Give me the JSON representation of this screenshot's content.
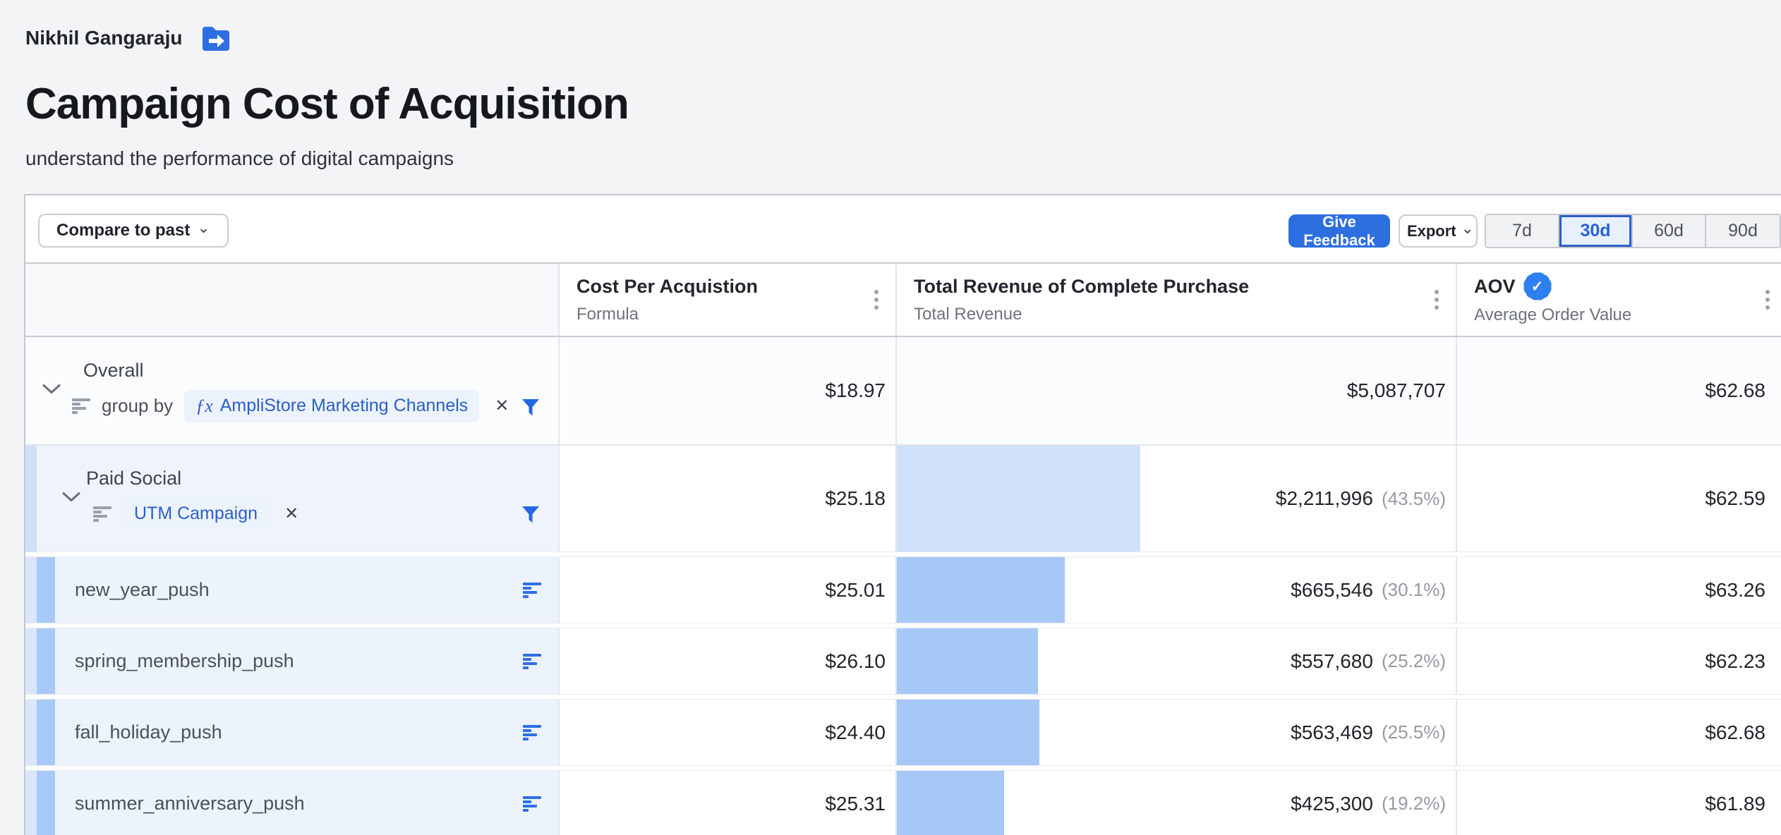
{
  "header": {
    "breadcrumb": "Nikhil Gangaraju",
    "title": "Campaign Cost of Acquisition",
    "subtitle": "understand the performance of digital campaigns"
  },
  "toolbar": {
    "compare_label": "Compare to past",
    "feedback_label": "Give Feedback",
    "export_label": "Export",
    "ranges": [
      "7d",
      "30d",
      "60d",
      "90d"
    ],
    "selected_range": "30d"
  },
  "glyphs": {
    "caret_down": "⌄",
    "remove_x": "✕",
    "fx": "ƒx",
    "check": "✓"
  },
  "columns": [
    {
      "title": "Cost Per Acquistion",
      "subtitle": "Formula"
    },
    {
      "title": "Total Revenue of Complete Purchase",
      "subtitle": "Total Revenue"
    },
    {
      "title": "AOV",
      "subtitle": "Average Order Value",
      "verified": true
    }
  ],
  "rows": [
    {
      "label": "Overall",
      "group_by_text": "group by",
      "pill": "AmpliStore Marketing Channels",
      "cpa": "$18.97",
      "revenue": "$5,087,707",
      "pct": "",
      "aov": "$62.68",
      "bar_pct": 0
    },
    {
      "label": "Paid Social",
      "pill": "UTM Campaign",
      "cpa": "$25.18",
      "revenue": "$2,211,996",
      "pct": "(43.5%)",
      "aov": "$62.59",
      "bar_pct": 43.5
    },
    {
      "label": "new_year_push",
      "cpa": "$25.01",
      "revenue": "$665,546",
      "pct": "(30.1%)",
      "aov": "$63.26",
      "bar_pct": 30.1
    },
    {
      "label": "spring_membership_push",
      "cpa": "$26.10",
      "revenue": "$557,680",
      "pct": "(25.2%)",
      "aov": "$62.23",
      "bar_pct": 25.2
    },
    {
      "label": "fall_holiday_push",
      "cpa": "$24.40",
      "revenue": "$563,469",
      "pct": "(25.5%)",
      "aov": "$62.68",
      "bar_pct": 25.5
    },
    {
      "label": "summer_anniversary_push",
      "cpa": "$25.31",
      "revenue": "$425,300",
      "pct": "(19.2%)",
      "aov": "$61.89",
      "bar_pct": 19.2
    }
  ],
  "colors": {
    "accent_blue": "#2e6fe0",
    "bar_group": "#cfe0fa",
    "bar_campaign": "#a6c8f7",
    "verified_badge": "#2e7ff0",
    "row_tint": "#edf3fc"
  }
}
